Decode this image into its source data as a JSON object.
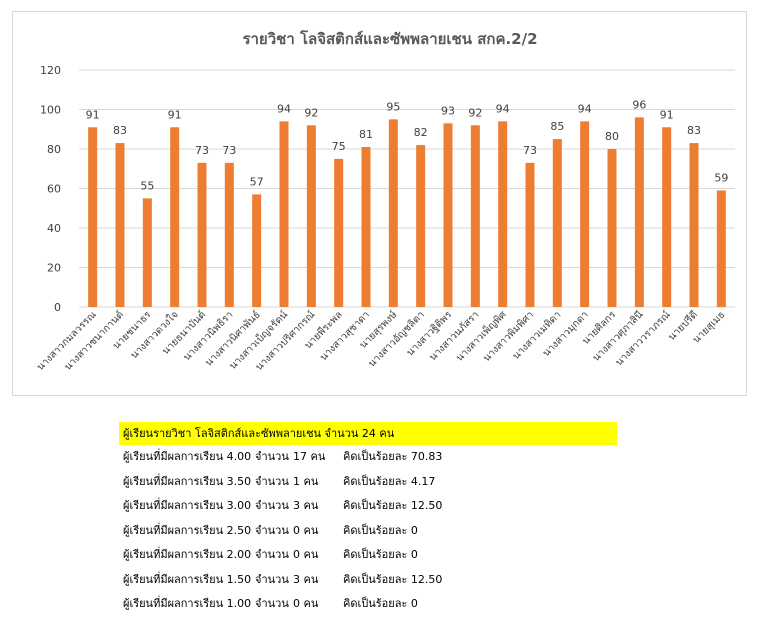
{
  "chart_data": {
    "type": "bar",
    "title": "รายวิชา โลจิสติกส์และซัพพลายเชน สกค.2/2",
    "categories": [
      "นางสาวกมลวรรณ",
      "นางสาวชนากานต์",
      "นายชนาธร",
      "นางสาวดวงใจ",
      "นายธนาบันต์",
      "นางสาวนิพธิรา",
      "นางสาวนิศาพันธ์",
      "นางสาวเบ็ญจรัตน์",
      "นางสาวปริศากรณ์",
      "นายพีระพล",
      "นางสาวสุชาดา",
      "นายสุรพงษ์",
      "นางสาวอัญชลิตา",
      "นางสาวฐิติพร",
      "นางสาวนภัสรา",
      "นางสาวเพ็ญพิศ",
      "นางสาวพิมพิศา",
      "นางสาวเมทิดา",
      "นางสาวมุกดา",
      "นายศิลกร",
      "นางสาวศุภาสินี",
      "นางสาววราภรณ์",
      "นายปรีดี",
      "นายสุเมธ"
    ],
    "values": [
      91,
      83,
      55,
      91,
      73,
      73,
      57,
      94,
      92,
      75,
      81,
      95,
      82,
      93,
      92,
      94,
      73,
      85,
      94,
      80,
      96,
      91,
      83,
      59
    ],
    "ylim": [
      0,
      120
    ],
    "yticks": [
      0,
      20,
      40,
      60,
      80,
      100,
      120
    ],
    "grid": true,
    "legend": "none",
    "bar_color": "#ed7d31"
  },
  "summary": {
    "header": "ผู้เรียนรายวิชา โลจิสติกส์และซัพพลายเชน จำนวน 24 คน",
    "rows": [
      {
        "desc": "ผู้เรียนที่มีผลการเรียน 4.00",
        "count_label": "จำนวน",
        "count": "17 คน",
        "percent": "คิดเป็นร้อยละ 70.83"
      },
      {
        "desc": "ผู้เรียนที่มีผลการเรียน 3.50",
        "count_label": "จำนวน",
        "count": "1 คน",
        "percent": "คิดเป็นร้อยละ 4.17"
      },
      {
        "desc": "ผู้เรียนที่มีผลการเรียน 3.00",
        "count_label": "จำนวน",
        "count": "3 คน",
        "percent": "คิดเป็นร้อยละ 12.50"
      },
      {
        "desc": "ผู้เรียนที่มีผลการเรียน 2.50",
        "count_label": "จำนวน",
        "count": "0 คน",
        "percent": "คิดเป็นร้อยละ 0"
      },
      {
        "desc": "ผู้เรียนที่มีผลการเรียน 2.00",
        "count_label": "จำนวน",
        "count": "0 คน",
        "percent": "คิดเป็นร้อยละ 0"
      },
      {
        "desc": "ผู้เรียนที่มีผลการเรียน 1.50",
        "count_label": "จำนวน",
        "count": "3 คน",
        "percent": "คิดเป็นร้อยละ 12.50"
      },
      {
        "desc": "ผู้เรียนที่มีผลการเรียน 1.00",
        "count_label": "จำนวน",
        "count": "0 คน",
        "percent": "คิดเป็นร้อยละ 0"
      }
    ]
  }
}
